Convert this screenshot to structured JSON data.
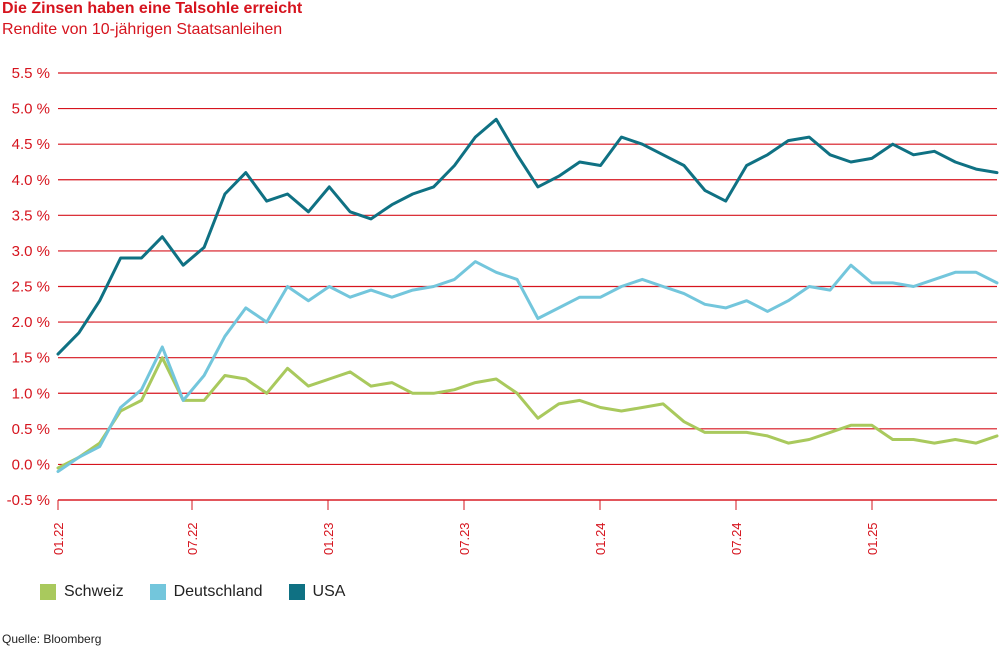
{
  "title": "Die Zinsen haben eine Talsohle erreicht",
  "subtitle": "Rendite von 10-jährigen Staatsanleihen",
  "source": "Quelle: Bloomberg",
  "colors": {
    "grid": "#d6141e",
    "axis_text": "#d6141e",
    "schweiz": "#a9c95d",
    "deutschland": "#73c6dc",
    "usa": "#0f7183"
  },
  "chart_data": {
    "type": "line",
    "ylim": [
      -0.5,
      5.5
    ],
    "yticks": [
      "5.5 %",
      "5.0 %",
      "4.5 %",
      "4.0 %",
      "3.5 %",
      "3.0 %",
      "2.5 %",
      "2.0 %",
      "1.5 %",
      "1.0 %",
      "0.5 %",
      "0.0 %",
      "-0.5 %"
    ],
    "ytick_values": [
      5.5,
      5.0,
      4.5,
      4.0,
      3.5,
      3.0,
      2.5,
      2.0,
      1.5,
      1.0,
      0.5,
      0.0,
      -0.5
    ],
    "xticks": [
      "01.22",
      "07.22",
      "01.23",
      "07.23",
      "01.24",
      "07.24",
      "01.25"
    ],
    "x_start": "2022-01",
    "x_end": "2025-10",
    "legend_position": "bottom-left",
    "grid": true,
    "x": [
      "2022-01",
      "2022-02",
      "2022-03",
      "2022-04",
      "2022-05",
      "2022-06",
      "2022-07",
      "2022-08",
      "2022-09",
      "2022-10",
      "2022-11",
      "2022-12",
      "2023-01",
      "2023-02",
      "2023-03",
      "2023-04",
      "2023-05",
      "2023-06",
      "2023-07",
      "2023-08",
      "2023-09",
      "2023-10",
      "2023-11",
      "2023-12",
      "2024-01",
      "2024-02",
      "2024-03",
      "2024-04",
      "2024-05",
      "2024-06",
      "2024-07",
      "2024-08",
      "2024-09",
      "2024-10",
      "2024-11",
      "2024-12",
      "2025-01",
      "2025-02",
      "2025-03",
      "2025-04",
      "2025-05",
      "2025-06",
      "2025-07",
      "2025-08",
      "2025-09",
      "2025-10"
    ],
    "series": [
      {
        "name": "Schweiz",
        "color": "#a9c95d",
        "values": [
          -0.05,
          0.1,
          0.3,
          0.75,
          0.9,
          1.5,
          0.9,
          0.9,
          1.25,
          1.2,
          1.0,
          1.35,
          1.1,
          1.2,
          1.3,
          1.1,
          1.15,
          1.0,
          1.0,
          1.05,
          1.15,
          1.2,
          1.0,
          0.65,
          0.85,
          0.9,
          0.8,
          0.75,
          0.8,
          0.85,
          0.6,
          0.45,
          0.45,
          0.45,
          0.4,
          0.3,
          0.35,
          0.45,
          0.55,
          0.55,
          0.35,
          0.35,
          0.3,
          0.35,
          0.3,
          0.4
        ]
      },
      {
        "name": "Deutschland",
        "color": "#73c6dc",
        "values": [
          -0.1,
          0.1,
          0.25,
          0.8,
          1.05,
          1.65,
          0.9,
          1.25,
          1.8,
          2.2,
          2.0,
          2.5,
          2.3,
          2.5,
          2.35,
          2.45,
          2.35,
          2.45,
          2.5,
          2.6,
          2.85,
          2.7,
          2.6,
          2.05,
          2.2,
          2.35,
          2.35,
          2.5,
          2.6,
          2.5,
          2.4,
          2.25,
          2.2,
          2.3,
          2.15,
          2.3,
          2.5,
          2.45,
          2.8,
          2.55,
          2.55,
          2.5,
          2.6,
          2.7,
          2.7,
          2.55
        ]
      },
      {
        "name": "USA",
        "color": "#0f7183",
        "values": [
          1.55,
          1.85,
          2.3,
          2.9,
          2.9,
          3.2,
          2.8,
          3.05,
          3.8,
          4.1,
          3.7,
          3.8,
          3.55,
          3.9,
          3.55,
          3.45,
          3.65,
          3.8,
          3.9,
          4.2,
          4.6,
          4.85,
          4.35,
          3.9,
          4.05,
          4.25,
          4.2,
          4.6,
          4.5,
          4.35,
          4.2,
          3.85,
          3.7,
          4.2,
          4.35,
          4.55,
          4.6,
          4.35,
          4.25,
          4.3,
          4.5,
          4.35,
          4.4,
          4.25,
          4.15,
          4.1
        ]
      }
    ]
  }
}
